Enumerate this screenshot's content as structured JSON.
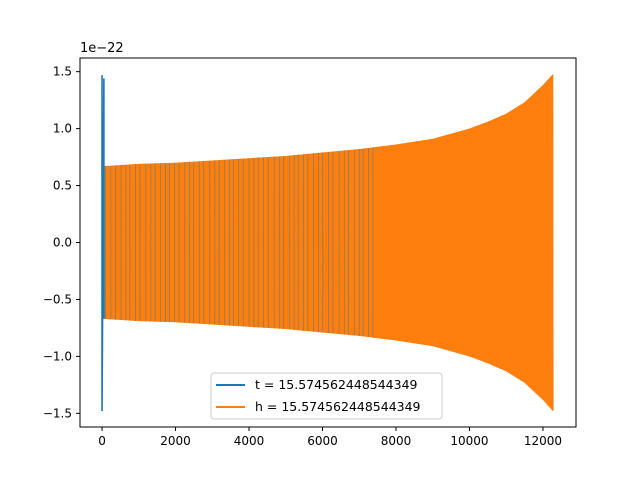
{
  "chart_data": {
    "type": "line",
    "title": "",
    "xlabel": "",
    "ylabel": "",
    "y_offset_label": "1e−22",
    "xlim": [
      -600,
      12900
    ],
    "ylim": [
      -1.62,
      1.62
    ],
    "xticks": [
      0,
      2000,
      4000,
      6000,
      8000,
      10000,
      12000
    ],
    "xtick_labels": [
      "0",
      "2000",
      "4000",
      "6000",
      "8000",
      "10000",
      "12000"
    ],
    "yticks": [
      -1.5,
      -1.0,
      -0.5,
      0.0,
      0.5,
      1.0,
      1.5
    ],
    "ytick_labels": [
      "−1.5",
      "−1.0",
      "−0.5",
      "0.0",
      "0.5",
      "1.0",
      "1.5"
    ],
    "grid": false,
    "legend_position": "lower center",
    "series": [
      {
        "name": "t = 15.574562448544349",
        "color": "#1f77b4",
        "description_points": [
          {
            "x": 0,
            "y": 1.47
          },
          {
            "x": 0,
            "y": -1.48
          },
          {
            "x": 50,
            "y": 1.44
          },
          {
            "x": 50,
            "y": -0.67
          }
        ]
      },
      {
        "name": "h = 15.574562448544349",
        "color": "#ff7f0e",
        "envelope": {
          "x": [
            0,
            1000,
            2000,
            3000,
            4000,
            5000,
            6000,
            7000,
            8000,
            9000,
            10000,
            10500,
            11000,
            11500,
            12000,
            12280
          ],
          "upper": [
            0.67,
            0.69,
            0.7,
            0.72,
            0.74,
            0.76,
            0.79,
            0.82,
            0.86,
            0.91,
            1.0,
            1.06,
            1.13,
            1.23,
            1.38,
            1.48
          ],
          "lower": [
            -0.67,
            -0.69,
            -0.7,
            -0.72,
            -0.74,
            -0.76,
            -0.79,
            -0.82,
            -0.86,
            -0.91,
            -1.0,
            -1.06,
            -1.13,
            -1.23,
            -1.38,
            -1.48
          ]
        }
      }
    ]
  }
}
